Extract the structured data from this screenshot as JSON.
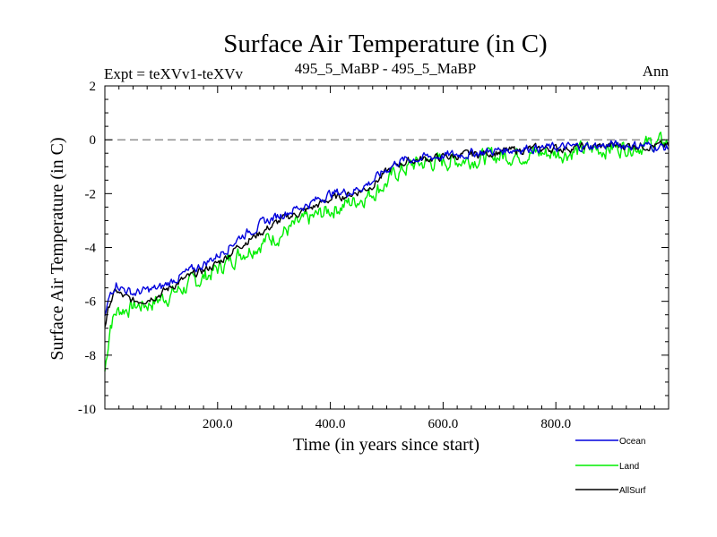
{
  "chart_data": {
    "type": "line",
    "title": "Surface Air Temperature (in C)",
    "subtitle_left": "Expt = teXVv1-teXVv",
    "subtitle_center": "495_5_MaBP - 495_5_MaBP",
    "subtitle_right": "Ann",
    "xlabel": "Time (in years since start)",
    "ylabel": "Surface Air Temperature (in C)",
    "xlim": [
      0,
      1000
    ],
    "ylim": [
      -10,
      2
    ],
    "x_ticks": [
      200,
      400,
      600,
      800
    ],
    "x_tick_labels": [
      "200.0",
      "400.0",
      "600.0",
      "800.0"
    ],
    "y_ticks": [
      2,
      0,
      -2,
      -4,
      -6,
      -8,
      -10
    ],
    "y_tick_labels": [
      "2",
      "0",
      "-2",
      "-4",
      "-6",
      "-8",
      "-10"
    ],
    "reference_line": {
      "y": 0,
      "style": "dashed"
    },
    "legend_position": "bottom-right",
    "series": [
      {
        "name": "Ocean",
        "color": "#0000dd",
        "x": [
          0,
          10,
          20,
          30,
          50,
          75,
          100,
          130,
          160,
          200,
          240,
          280,
          320,
          360,
          400,
          440,
          470,
          500,
          520,
          550,
          600,
          650,
          700,
          750,
          800,
          850,
          900,
          950,
          1000
        ],
        "values": [
          -6.6,
          -5.7,
          -5.3,
          -5.5,
          -5.7,
          -5.6,
          -5.5,
          -5.1,
          -4.8,
          -4.3,
          -3.6,
          -3.1,
          -2.7,
          -2.4,
          -2.0,
          -1.9,
          -1.6,
          -1.1,
          -0.8,
          -0.7,
          -0.6,
          -0.5,
          -0.4,
          -0.3,
          -0.3,
          -0.25,
          -0.2,
          -0.2,
          -0.3
        ]
      },
      {
        "name": "Land",
        "color": "#00ee00",
        "x": [
          0,
          10,
          20,
          30,
          50,
          75,
          100,
          130,
          160,
          200,
          240,
          280,
          320,
          360,
          400,
          440,
          470,
          500,
          520,
          550,
          600,
          650,
          700,
          750,
          800,
          850,
          900,
          950,
          1000
        ],
        "values": [
          -8.6,
          -6.8,
          -6.4,
          -6.3,
          -6.2,
          -6.1,
          -5.9,
          -5.6,
          -5.3,
          -4.8,
          -4.2,
          -3.8,
          -3.4,
          -3.0,
          -2.6,
          -2.3,
          -2.0,
          -1.6,
          -1.2,
          -0.9,
          -0.8,
          -0.7,
          -0.6,
          -0.5,
          -0.5,
          -0.4,
          -0.3,
          -0.2,
          -0.1
        ]
      },
      {
        "name": "AllSurf",
        "color": "#000000",
        "x": [
          0,
          10,
          20,
          30,
          50,
          75,
          100,
          130,
          160,
          200,
          240,
          280,
          320,
          360,
          400,
          440,
          470,
          500,
          520,
          550,
          600,
          650,
          700,
          750,
          800,
          850,
          900,
          950,
          1000
        ],
        "values": [
          -6.9,
          -6.0,
          -5.6,
          -5.8,
          -6.0,
          -5.9,
          -5.7,
          -5.3,
          -5.0,
          -4.6,
          -3.9,
          -3.4,
          -2.9,
          -2.6,
          -2.2,
          -2.0,
          -1.75,
          -1.2,
          -0.9,
          -0.75,
          -0.65,
          -0.55,
          -0.45,
          -0.35,
          -0.32,
          -0.28,
          -0.22,
          -0.2,
          -0.25
        ]
      }
    ]
  }
}
